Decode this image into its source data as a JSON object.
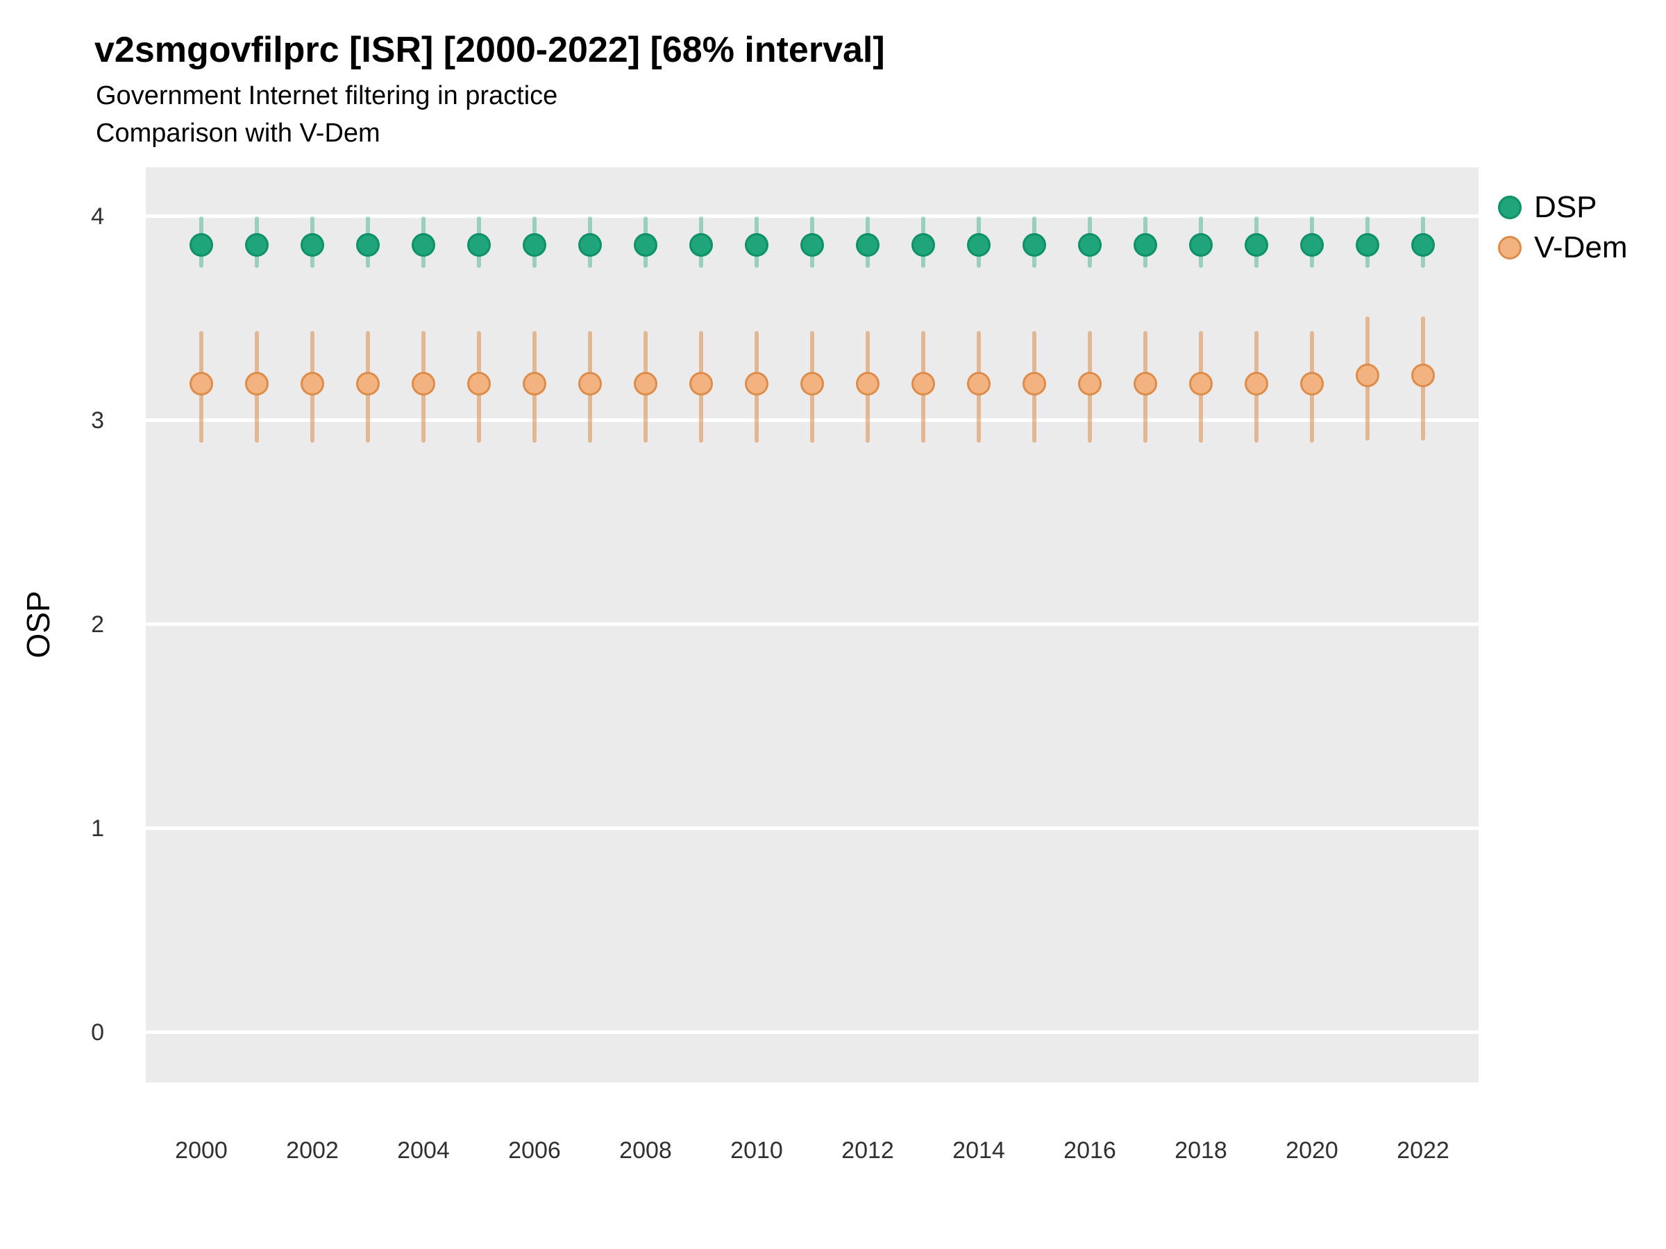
{
  "chart_data": {
    "type": "scatter",
    "subtype": "pointrange",
    "title": "v2smgovfilprc [ISR] [2000-2022] [68% interval]",
    "subtitle_line1": "Government Internet filtering in practice",
    "subtitle_line2": "Comparison with V-Dem",
    "xlabel": "",
    "ylabel": "OSP",
    "interval_level": "68%",
    "ylim": [
      0,
      4
    ],
    "y_ticks": [
      4,
      3,
      2,
      1,
      0
    ],
    "x_ticks": [
      2000,
      2002,
      2004,
      2006,
      2008,
      2010,
      2012,
      2014,
      2016,
      2018,
      2020,
      2022
    ],
    "grid": "major-horizontal-white-on-gray",
    "panel_background": "#EBEBEB",
    "legend_position": "right",
    "legend": [
      {
        "label": "DSP",
        "fill": "#1FA47B",
        "stroke": "#0F9168"
      },
      {
        "label": "V-Dem",
        "fill": "#F2B381",
        "stroke": "#DE8C4A"
      }
    ],
    "series": [
      {
        "name": "DSP",
        "point_fill": "#1FA47B",
        "point_stroke": "#0F9168",
        "bar_color": "rgba(31,164,123,0.40)",
        "points": [
          {
            "x": 2000,
            "y": 3.86,
            "lo": 3.75,
            "hi": 4.0
          },
          {
            "x": 2001,
            "y": 3.86,
            "lo": 3.75,
            "hi": 4.0
          },
          {
            "x": 2002,
            "y": 3.86,
            "lo": 3.75,
            "hi": 4.0
          },
          {
            "x": 2003,
            "y": 3.86,
            "lo": 3.75,
            "hi": 4.0
          },
          {
            "x": 2004,
            "y": 3.86,
            "lo": 3.75,
            "hi": 4.0
          },
          {
            "x": 2005,
            "y": 3.86,
            "lo": 3.75,
            "hi": 4.0
          },
          {
            "x": 2006,
            "y": 3.86,
            "lo": 3.75,
            "hi": 4.0
          },
          {
            "x": 2007,
            "y": 3.86,
            "lo": 3.75,
            "hi": 4.0
          },
          {
            "x": 2008,
            "y": 3.86,
            "lo": 3.75,
            "hi": 4.0
          },
          {
            "x": 2009,
            "y": 3.86,
            "lo": 3.75,
            "hi": 4.0
          },
          {
            "x": 2010,
            "y": 3.86,
            "lo": 3.75,
            "hi": 4.0
          },
          {
            "x": 2011,
            "y": 3.86,
            "lo": 3.75,
            "hi": 4.0
          },
          {
            "x": 2012,
            "y": 3.86,
            "lo": 3.75,
            "hi": 4.0
          },
          {
            "x": 2013,
            "y": 3.86,
            "lo": 3.75,
            "hi": 4.0
          },
          {
            "x": 2014,
            "y": 3.86,
            "lo": 3.75,
            "hi": 4.0
          },
          {
            "x": 2015,
            "y": 3.86,
            "lo": 3.75,
            "hi": 4.0
          },
          {
            "x": 2016,
            "y": 3.86,
            "lo": 3.75,
            "hi": 4.0
          },
          {
            "x": 2017,
            "y": 3.86,
            "lo": 3.75,
            "hi": 4.0
          },
          {
            "x": 2018,
            "y": 3.86,
            "lo": 3.75,
            "hi": 4.0
          },
          {
            "x": 2019,
            "y": 3.86,
            "lo": 3.75,
            "hi": 4.0
          },
          {
            "x": 2020,
            "y": 3.86,
            "lo": 3.75,
            "hi": 4.0
          },
          {
            "x": 2021,
            "y": 3.86,
            "lo": 3.75,
            "hi": 4.0
          },
          {
            "x": 2022,
            "y": 3.86,
            "lo": 3.75,
            "hi": 4.0
          }
        ]
      },
      {
        "name": "V-Dem",
        "point_fill": "#F2B381",
        "point_stroke": "#DE8C4A",
        "bar_color": "rgba(222,140,74,0.55)",
        "points": [
          {
            "x": 2000,
            "y": 3.18,
            "lo": 2.89,
            "hi": 3.44
          },
          {
            "x": 2001,
            "y": 3.18,
            "lo": 2.89,
            "hi": 3.44
          },
          {
            "x": 2002,
            "y": 3.18,
            "lo": 2.89,
            "hi": 3.44
          },
          {
            "x": 2003,
            "y": 3.18,
            "lo": 2.89,
            "hi": 3.44
          },
          {
            "x": 2004,
            "y": 3.18,
            "lo": 2.89,
            "hi": 3.44
          },
          {
            "x": 2005,
            "y": 3.18,
            "lo": 2.89,
            "hi": 3.44
          },
          {
            "x": 2006,
            "y": 3.18,
            "lo": 2.89,
            "hi": 3.44
          },
          {
            "x": 2007,
            "y": 3.18,
            "lo": 2.89,
            "hi": 3.44
          },
          {
            "x": 2008,
            "y": 3.18,
            "lo": 2.89,
            "hi": 3.44
          },
          {
            "x": 2009,
            "y": 3.18,
            "lo": 2.89,
            "hi": 3.44
          },
          {
            "x": 2010,
            "y": 3.18,
            "lo": 2.89,
            "hi": 3.44
          },
          {
            "x": 2011,
            "y": 3.18,
            "lo": 2.89,
            "hi": 3.44
          },
          {
            "x": 2012,
            "y": 3.18,
            "lo": 2.89,
            "hi": 3.44
          },
          {
            "x": 2013,
            "y": 3.18,
            "lo": 2.89,
            "hi": 3.44
          },
          {
            "x": 2014,
            "y": 3.18,
            "lo": 2.89,
            "hi": 3.44
          },
          {
            "x": 2015,
            "y": 3.18,
            "lo": 2.89,
            "hi": 3.44
          },
          {
            "x": 2016,
            "y": 3.18,
            "lo": 2.89,
            "hi": 3.44
          },
          {
            "x": 2017,
            "y": 3.18,
            "lo": 2.89,
            "hi": 3.44
          },
          {
            "x": 2018,
            "y": 3.18,
            "lo": 2.89,
            "hi": 3.44
          },
          {
            "x": 2019,
            "y": 3.18,
            "lo": 2.89,
            "hi": 3.44
          },
          {
            "x": 2020,
            "y": 3.18,
            "lo": 2.89,
            "hi": 3.44
          },
          {
            "x": 2021,
            "y": 3.22,
            "lo": 2.9,
            "hi": 3.51
          },
          {
            "x": 2022,
            "y": 3.22,
            "lo": 2.9,
            "hi": 3.51
          }
        ]
      }
    ]
  }
}
